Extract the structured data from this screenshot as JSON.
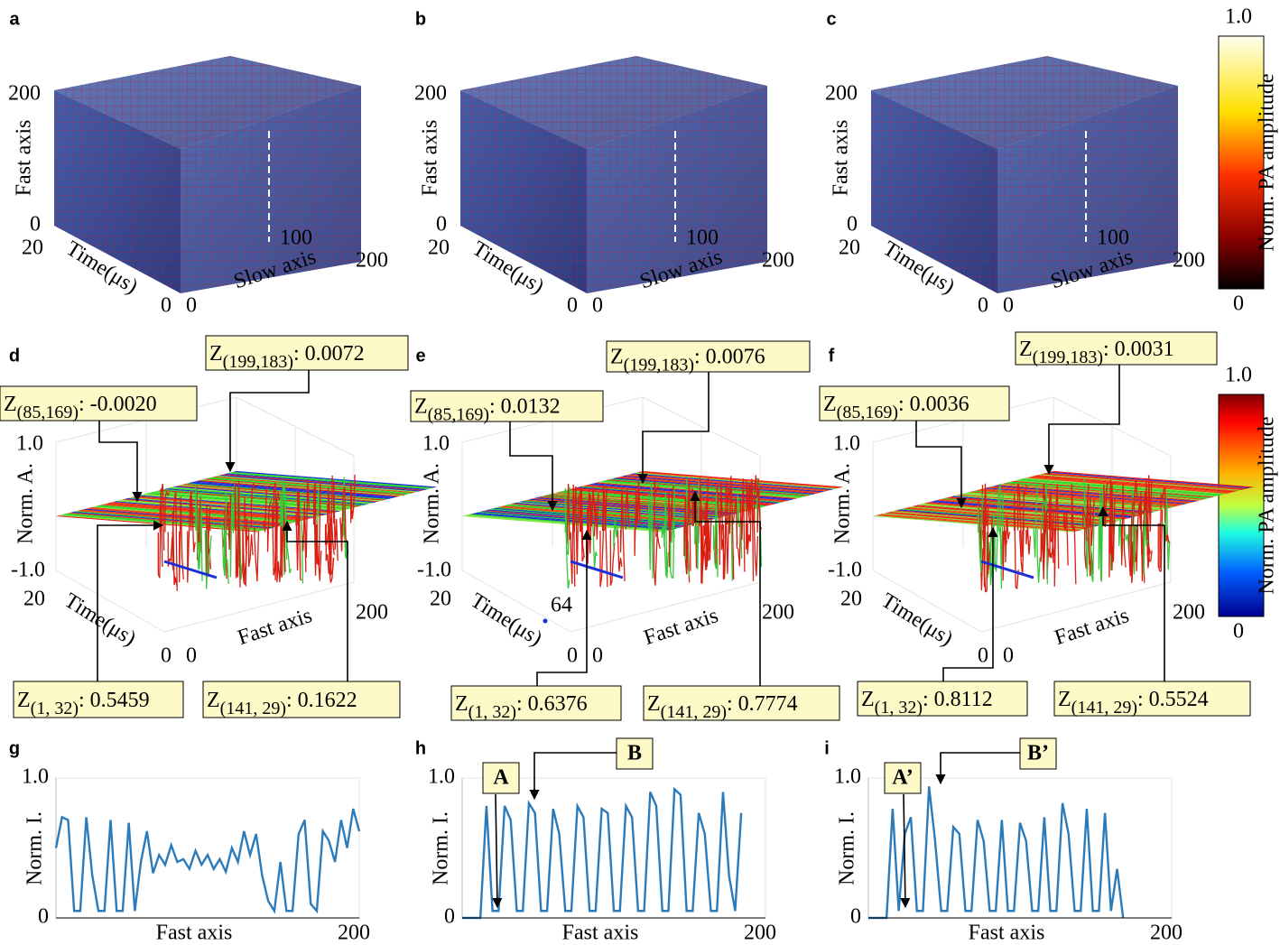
{
  "volumes": [
    {
      "label": "a",
      "y_axis": "Fast axis",
      "depth_axis": "Time(μs)",
      "x_axis": "Slow axis",
      "y_ticks": [
        200,
        0
      ],
      "depth_ticks": [
        20,
        0
      ],
      "x_ticks": [
        0,
        100,
        200
      ]
    },
    {
      "label": "b",
      "y_axis": "Fast axis",
      "depth_axis": "Time(μs)",
      "x_axis": "Slow axis",
      "y_ticks": [
        200,
        0
      ],
      "depth_ticks": [
        20,
        0
      ],
      "x_ticks": [
        0,
        100,
        200
      ]
    },
    {
      "label": "c",
      "y_axis": "Fast axis",
      "depth_axis": "Time(μs)",
      "x_axis": "Slow axis",
      "y_ticks": [
        200,
        0
      ],
      "depth_ticks": [
        20,
        0
      ],
      "x_ticks": [
        0,
        100,
        200
      ]
    }
  ],
  "surfaces": [
    {
      "label": "d",
      "z_axis": "Norm. A.",
      "z_ticks": [
        {
          "value": 1,
          "label": "1.0"
        },
        {
          "value": -1,
          "label": "-1.0"
        }
      ],
      "depth_axis": "Time(μs)",
      "depth_ticks": [
        20,
        0
      ],
      "x_axis": "Fast axis",
      "x_ticks": [
        0,
        200
      ],
      "annotations": [
        {
          "z": "Z",
          "sub": "(199,183)",
          "rest": ": 0.0072"
        },
        {
          "z": "Z",
          "sub": "(85,169)",
          "rest": ": -0.0020"
        },
        {
          "z": "Z",
          "sub": "(1, 32)",
          "rest": ": 0.5459"
        },
        {
          "z": "Z",
          "sub": "(141, 29)",
          "rest": ": 0.1622"
        }
      ]
    },
    {
      "label": "e",
      "z_axis": "Norm. A.",
      "z_ticks": [
        {
          "value": 1,
          "label": "1.0"
        },
        {
          "value": -1,
          "label": "-1.0"
        }
      ],
      "depth_axis": "Time(μs)",
      "depth_ticks": [
        20,
        0
      ],
      "x_axis": "Fast axis",
      "x_ticks": [
        0,
        200
      ],
      "marker_label": 64,
      "annotations": [
        {
          "z": "Z",
          "sub": "(199,183)",
          "rest": ": 0.0076"
        },
        {
          "z": "Z",
          "sub": "(85,169)",
          "rest": ": 0.0132"
        },
        {
          "z": "Z",
          "sub": "(1, 32)",
          "rest": ": 0.6376"
        },
        {
          "z": "Z",
          "sub": "(141, 29)",
          "rest": ": 0.7774"
        }
      ]
    },
    {
      "label": "f",
      "z_axis": "Norm. A.",
      "z_ticks": [
        {
          "value": 1,
          "label": "1.0"
        },
        {
          "value": -1,
          "label": "-1.0"
        }
      ],
      "depth_axis": "Time(μs)",
      "depth_ticks": [
        20,
        0
      ],
      "x_axis": "Fast axis",
      "x_ticks": [
        0,
        200
      ],
      "annotations": [
        {
          "z": "Z",
          "sub": "(199,183)",
          "rest": ": 0.0031"
        },
        {
          "z": "Z",
          "sub": "(85,169)",
          "rest": ": 0.0036"
        },
        {
          "z": "Z",
          "sub": "(1, 32)",
          "rest": ": 0.8112"
        },
        {
          "z": "Z",
          "sub": "(141, 29)",
          "rest": ": 0.5524"
        }
      ]
    }
  ],
  "colorbars": [
    {
      "label": "Norm. PA amplitude",
      "ticks": [
        {
          "value": 1,
          "label": "1.0"
        },
        0
      ]
    },
    {
      "label": "Norm. PA amplitude",
      "ticks": [
        {
          "value": 1,
          "label": "1.0"
        },
        0
      ]
    }
  ],
  "chart_data": [
    {
      "type": "line",
      "panel_label": "g",
      "xlabel": "Fast axis",
      "ylabel": "Norm. I.",
      "xlim": [
        0,
        200
      ],
      "xticks": [
        200
      ],
      "ylim": [
        0,
        1
      ],
      "yticks": [
        0,
        {
          "value": 1,
          "label": "1.0"
        }
      ],
      "grid": true,
      "x": [
        0,
        4,
        8,
        12,
        16,
        20,
        24,
        28,
        32,
        36,
        40,
        44,
        48,
        52,
        56,
        60,
        64,
        68,
        72,
        76,
        80,
        84,
        88,
        92,
        96,
        100,
        104,
        108,
        112,
        116,
        120,
        124,
        128,
        132,
        136,
        140,
        144,
        148,
        152,
        156,
        160,
        164,
        168,
        172,
        176,
        180,
        184,
        188,
        192,
        196,
        200
      ],
      "series": [
        {
          "color": "#2b7bba",
          "values": [
            0.5,
            0.72,
            0.7,
            0.05,
            0.05,
            0.72,
            0.3,
            0.05,
            0.05,
            0.7,
            0.05,
            0.05,
            0.68,
            0.05,
            0.4,
            0.62,
            0.32,
            0.45,
            0.38,
            0.52,
            0.4,
            0.42,
            0.35,
            0.48,
            0.38,
            0.45,
            0.35,
            0.42,
            0.33,
            0.5,
            0.4,
            0.62,
            0.45,
            0.6,
            0.3,
            0.12,
            0.05,
            0.4,
            0.05,
            0.05,
            0.6,
            0.7,
            0.1,
            0.05,
            0.62,
            0.55,
            0.4,
            0.7,
            0.5,
            0.78,
            0.62
          ]
        }
      ],
      "annotations": []
    },
    {
      "type": "line",
      "panel_label": "h",
      "xlabel": "Fast axis",
      "ylabel": "Norm. I.",
      "xlim": [
        0,
        200
      ],
      "xticks": [
        200
      ],
      "ylim": [
        0,
        1
      ],
      "yticks": [
        0,
        {
          "value": 1,
          "label": "1.0"
        }
      ],
      "grid": true,
      "x": [
        0,
        4,
        8,
        12,
        16,
        20,
        24,
        28,
        32,
        36,
        40,
        44,
        48,
        52,
        56,
        60,
        64,
        68,
        72,
        76,
        80,
        84,
        88,
        92,
        96,
        100,
        104,
        108,
        112,
        116,
        120,
        124,
        128,
        132,
        136,
        140,
        144,
        148,
        152,
        156,
        160,
        164,
        168,
        172,
        176,
        180,
        184
      ],
      "series": [
        {
          "color": "#2b7bba",
          "values": [
            0,
            0,
            0,
            0,
            0.8,
            0.05,
            0.05,
            0.8,
            0.7,
            0.05,
            0.05,
            0.82,
            0.75,
            0.05,
            0.05,
            0.78,
            0.6,
            0.05,
            0.05,
            0.8,
            0.72,
            0.05,
            0.05,
            0.78,
            0.75,
            0.05,
            0.05,
            0.8,
            0.72,
            0.05,
            0.05,
            0.9,
            0.8,
            0.05,
            0.05,
            0.92,
            0.88,
            0.05,
            0.05,
            0.75,
            0.6,
            0.05,
            0.05,
            0.9,
            0.3,
            0.05,
            0.75
          ]
        }
      ],
      "annotations": [
        {
          "text": "A"
        },
        {
          "text": "B"
        }
      ]
    },
    {
      "type": "line",
      "panel_label": "i",
      "xlabel": "Fast axis",
      "ylabel": "Norm. I.",
      "xlim": [
        0,
        200
      ],
      "xticks": [
        200
      ],
      "ylim": [
        0,
        1
      ],
      "yticks": [
        0,
        {
          "value": 1,
          "label": "1.0"
        }
      ],
      "grid": true,
      "x": [
        0,
        4,
        8,
        12,
        16,
        20,
        24,
        28,
        32,
        36,
        40,
        44,
        48,
        52,
        56,
        60,
        64,
        68,
        72,
        76,
        80,
        84,
        88,
        92,
        96,
        100,
        104,
        108,
        112,
        116,
        120,
        124,
        128,
        132,
        136,
        140,
        144,
        148,
        152,
        156,
        160,
        164,
        168
      ],
      "series": [
        {
          "color": "#2b7bba",
          "values": [
            0,
            0,
            0,
            0,
            0.78,
            0.05,
            0.6,
            0.72,
            0.05,
            0.05,
            0.94,
            0.55,
            0.05,
            0.05,
            0.65,
            0.6,
            0.05,
            0.05,
            0.7,
            0.55,
            0.05,
            0.05,
            0.7,
            0.05,
            0.05,
            0.68,
            0.55,
            0.05,
            0.05,
            0.72,
            0.05,
            0.05,
            0.82,
            0.6,
            0.05,
            0.05,
            0.78,
            0.05,
            0.05,
            0.75,
            0.05,
            0.35,
            0
          ]
        }
      ],
      "annotations": [
        {
          "text": "A’"
        },
        {
          "text": "B’"
        }
      ]
    }
  ]
}
